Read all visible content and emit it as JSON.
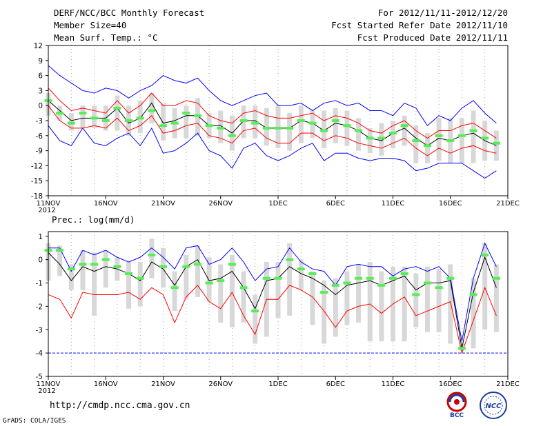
{
  "header": {
    "title": "DERF/NCC/BCC Monthly Forecast",
    "members": "Member Size=40",
    "variable": "Mean Surf. Temp.: °C",
    "period": "For 2012/11/11-2012/12/20",
    "refer": "Fcst Started Refer Date 2012/11/10",
    "produced": "Fcst Produced Date 2012/11/11"
  },
  "footer": {
    "url": "http://cmdp.ncc.cma.gov.cn",
    "credit": "GrADS: COLA/IGES",
    "logo_bcc": "BCC",
    "logo_ncc": "NCC"
  },
  "colors": {
    "max_min": "#0000ff",
    "spread": "#ff0000",
    "mean": "#000000",
    "median": "#55ee55",
    "box": "#d8d8d8",
    "grid": "#888888"
  },
  "chart_data": [
    {
      "type": "line",
      "title": "Mean Surf. Temp.: °C",
      "xlabel": "",
      "ylabel": "°C",
      "ylim": [
        -18,
        12
      ],
      "yticks": [
        12,
        9,
        6,
        3,
        0,
        -3,
        -6,
        -9,
        -12,
        -15,
        -18
      ],
      "xticks": [
        {
          "day": 1,
          "label": "11NOV",
          "sub": "2012"
        },
        {
          "day": 6,
          "label": "16NOV"
        },
        {
          "day": 11,
          "label": "21NOV"
        },
        {
          "day": 16,
          "label": "26NOV"
        },
        {
          "day": 21,
          "label": "1DEC"
        },
        {
          "day": 26,
          "label": "6DEC"
        },
        {
          "day": 31,
          "label": "11DEC"
        },
        {
          "day": 36,
          "label": "16DEC"
        },
        {
          "day": 41,
          "label": "21DEC"
        }
      ],
      "x": [
        1,
        2,
        3,
        4,
        5,
        6,
        7,
        8,
        9,
        10,
        11,
        12,
        13,
        14,
        15,
        16,
        17,
        18,
        19,
        20,
        21,
        22,
        23,
        24,
        25,
        26,
        27,
        28,
        29,
        30,
        31,
        32,
        33,
        34,
        35,
        36,
        37,
        38,
        39,
        40
      ],
      "series": [
        {
          "name": "max",
          "values": [
            8.0,
            6.0,
            4.5,
            3.0,
            2.5,
            3.5,
            3.0,
            1.5,
            3.0,
            4.0,
            6.0,
            5.0,
            4.5,
            5.5,
            3.0,
            1.0,
            0.0,
            1.0,
            2.0,
            2.5,
            0.0,
            0.0,
            0.5,
            -1.0,
            0.5,
            1.0,
            0.0,
            0.5,
            -1.0,
            -1.0,
            -2.0,
            0.5,
            -0.5,
            -4.0,
            -2.0,
            -3.0,
            -0.5,
            1.0,
            -1.5,
            -3.5
          ]
        },
        {
          "name": "upper",
          "values": [
            3.5,
            1.0,
            -1.0,
            -0.5,
            -1.0,
            -1.5,
            1.0,
            -1.5,
            0.0,
            2.5,
            0.0,
            0.0,
            1.0,
            0.5,
            -2.0,
            -3.0,
            -3.5,
            -1.5,
            -1.0,
            -2.0,
            -2.5,
            -2.5,
            -2.0,
            -1.5,
            -3.0,
            -2.0,
            -2.5,
            -3.5,
            -5.0,
            -5.5,
            -4.0,
            -3.0,
            -5.0,
            -6.5,
            -5.0,
            -5.0,
            -4.0,
            -3.5,
            -5.0,
            -6.5
          ]
        },
        {
          "name": "mean",
          "values": [
            1.0,
            -1.0,
            -3.0,
            -2.5,
            -2.5,
            -2.5,
            -0.5,
            -3.5,
            -2.5,
            0.5,
            -3.5,
            -3.0,
            -2.0,
            -2.0,
            -4.0,
            -4.0,
            -5.5,
            -3.0,
            -3.0,
            -4.5,
            -4.5,
            -4.5,
            -3.0,
            -3.5,
            -5.0,
            -3.5,
            -4.0,
            -5.0,
            -6.5,
            -7.0,
            -5.5,
            -4.5,
            -6.5,
            -8.0,
            -6.5,
            -7.0,
            -6.0,
            -5.5,
            -7.0,
            -8.0
          ]
        },
        {
          "name": "lower",
          "values": [
            0.0,
            -3.0,
            -4.5,
            -4.5,
            -4.0,
            -4.5,
            -2.5,
            -5.0,
            -4.0,
            -2.0,
            -5.5,
            -5.0,
            -4.0,
            -3.5,
            -6.0,
            -6.5,
            -7.5,
            -5.0,
            -4.5,
            -6.5,
            -7.5,
            -7.5,
            -5.5,
            -5.5,
            -7.0,
            -6.0,
            -6.5,
            -7.5,
            -8.0,
            -8.5,
            -7.5,
            -6.5,
            -8.5,
            -10.0,
            -8.5,
            -9.5,
            -8.5,
            -8.0,
            -9.0,
            -9.5
          ]
        },
        {
          "name": "min",
          "values": [
            -4.0,
            -7.0,
            -8.0,
            -4.5,
            -7.5,
            -8.0,
            -6.5,
            -5.5,
            -8.0,
            -4.5,
            -9.5,
            -9.0,
            -7.5,
            -5.5,
            -9.0,
            -10.0,
            -12.5,
            -8.5,
            -7.5,
            -10.0,
            -11.0,
            -10.0,
            -8.5,
            -7.5,
            -11.0,
            -9.5,
            -9.5,
            -10.5,
            -11.0,
            -10.5,
            -10.5,
            -11.0,
            -13.0,
            -12.5,
            -11.5,
            -11.5,
            -11.5,
            -13.0,
            -14.5,
            -13.0
          ]
        },
        {
          "name": "median",
          "values": [
            1.0,
            -1.5,
            -3.5,
            -1.5,
            -2.5,
            -3.0,
            -0.5,
            -3.0,
            -2.5,
            -1.0,
            -4.0,
            -3.5,
            -1.5,
            -2.0,
            -4.0,
            -4.5,
            -6.0,
            -3.0,
            -3.5,
            -4.5,
            -4.5,
            -4.5,
            -3.0,
            -3.5,
            -5.0,
            -3.0,
            -4.0,
            -5.0,
            -6.5,
            -6.5,
            -5.5,
            -4.0,
            -7.0,
            -8.0,
            -6.0,
            -7.0,
            -6.0,
            -5.0,
            -6.5,
            -7.5
          ]
        },
        {
          "name": "box_top",
          "values": [
            2.5,
            0.0,
            -1.5,
            0.0,
            0.0,
            0.0,
            2.0,
            0.0,
            1.0,
            2.5,
            0.5,
            -0.5,
            0.0,
            1.5,
            -1.5,
            -1.0,
            -2.0,
            0.0,
            0.0,
            -0.5,
            0.0,
            -1.5,
            0.0,
            -1.0,
            -1.0,
            -0.5,
            -1.0,
            -2.5,
            -4.5,
            -3.5,
            -3.0,
            -2.0,
            -4.0,
            -5.5,
            -2.5,
            -2.5,
            -2.5,
            -1.0,
            -3.0,
            -5.0
          ]
        },
        {
          "name": "box_bottom",
          "values": [
            -2.0,
            -3.0,
            -5.0,
            -4.5,
            -4.5,
            -5.0,
            -5.0,
            -6.0,
            -5.5,
            -3.5,
            -7.0,
            -6.5,
            -6.5,
            -6.0,
            -6.5,
            -7.5,
            -9.0,
            -6.5,
            -6.5,
            -8.0,
            -8.5,
            -9.0,
            -7.5,
            -6.5,
            -8.5,
            -7.5,
            -8.0,
            -9.0,
            -9.5,
            -10.0,
            -8.5,
            -8.0,
            -11.5,
            -11.5,
            -11.0,
            -11.5,
            -11.5,
            -11.5,
            -11.0,
            -11.0
          ]
        }
      ]
    },
    {
      "type": "line",
      "title": "Prec.: log(mm/d)",
      "xlabel": "",
      "ylabel": "log(mm/d)",
      "ylim": [
        -5,
        1.2
      ],
      "yticks": [
        1,
        0,
        -1,
        -2,
        -3,
        -4,
        -5
      ],
      "xticks": [
        {
          "day": 1,
          "label": "11NOV",
          "sub": "2012"
        },
        {
          "day": 6,
          "label": "16NOV"
        },
        {
          "day": 11,
          "label": "21NOV"
        },
        {
          "day": 16,
          "label": "26NOV"
        },
        {
          "day": 21,
          "label": "1DEC"
        },
        {
          "day": 26,
          "label": "6DEC"
        },
        {
          "day": 31,
          "label": "11DEC"
        },
        {
          "day": 36,
          "label": "16DEC"
        },
        {
          "day": 41,
          "label": "21DEC"
        }
      ],
      "x": [
        1,
        2,
        3,
        4,
        5,
        6,
        7,
        8,
        9,
        10,
        11,
        12,
        13,
        14,
        15,
        16,
        17,
        18,
        19,
        20,
        21,
        22,
        23,
        24,
        25,
        26,
        27,
        28,
        29,
        30,
        31,
        32,
        33,
        34,
        35,
        36,
        37,
        38,
        39,
        40
      ],
      "floor": -4,
      "series": [
        {
          "name": "max",
          "values": [
            0.5,
            0.5,
            -0.5,
            0.4,
            0.2,
            0.4,
            0.1,
            -0.1,
            0.1,
            0.5,
            0.1,
            -0.4,
            0.5,
            0.6,
            -0.2,
            0.0,
            0.5,
            -0.1,
            -0.9,
            -0.4,
            -0.3,
            0.5,
            -0.1,
            -0.4,
            -0.5,
            -1.1,
            -0.3,
            -0.2,
            -0.3,
            -0.3,
            -0.7,
            -0.4,
            -0.3,
            -0.5,
            -0.3,
            -0.8,
            -3.5,
            -0.8,
            0.7,
            -0.3
          ]
        },
        {
          "name": "mean",
          "values": [
            0.3,
            -0.2,
            -0.9,
            -0.3,
            -0.5,
            -0.3,
            -0.4,
            -0.6,
            -0.9,
            -0.1,
            -0.4,
            -1.1,
            -0.3,
            0.0,
            -0.9,
            -0.8,
            -0.5,
            -1.2,
            -2.1,
            -0.9,
            -0.8,
            -0.3,
            -0.6,
            -0.8,
            -1.1,
            -1.5,
            -1.1,
            -1.0,
            -0.9,
            -1.1,
            -0.9,
            -0.7,
            -1.3,
            -1.0,
            -1.0,
            -0.9,
            -3.8,
            -1.4,
            0.1,
            -1.2
          ]
        },
        {
          "name": "lower",
          "values": [
            -1.5,
            -1.7,
            -2.5,
            -1.4,
            -1.5,
            -1.5,
            -1.5,
            -1.4,
            -1.7,
            -1.2,
            -1.5,
            -2.7,
            -1.6,
            -1.1,
            -1.8,
            -2.1,
            -1.4,
            -2.4,
            -3.2,
            -1.7,
            -1.7,
            -1.1,
            -1.3,
            -1.6,
            -2.2,
            -2.9,
            -2.2,
            -2.0,
            -1.9,
            -2.3,
            -1.9,
            -1.6,
            -2.4,
            -2.2,
            -2.0,
            -1.8,
            -4.0,
            -2.6,
            -1.2,
            -2.4
          ]
        },
        {
          "name": "median",
          "values": [
            0.4,
            0.4,
            -0.4,
            -0.2,
            -0.2,
            0.0,
            -0.3,
            -0.6,
            -0.8,
            0.2,
            -0.3,
            -1.2,
            -0.3,
            -0.2,
            -1.0,
            -0.9,
            -0.2,
            -1.2,
            -2.2,
            -0.8,
            -0.8,
            0.0,
            -0.4,
            -0.6,
            -1.4,
            -1.1,
            -1.0,
            -0.8,
            -0.8,
            -1.1,
            -0.8,
            -0.6,
            -1.5,
            -1.0,
            -1.2,
            -0.8,
            -3.8,
            -1.5,
            0.2,
            -0.8
          ]
        },
        {
          "name": "box_top",
          "values": [
            0.7,
            0.6,
            -0.2,
            0.4,
            0.3,
            0.4,
            0.1,
            -0.1,
            -0.1,
            0.9,
            0.5,
            -0.5,
            0.2,
            0.6,
            0.1,
            -0.2,
            0.2,
            -0.5,
            -1.5,
            -0.1,
            -0.1,
            0.7,
            0.0,
            -0.5,
            -0.9,
            -0.8,
            -0.5,
            -0.2,
            -0.1,
            -0.5,
            -0.3,
            -0.3,
            -0.6,
            -0.3,
            -0.4,
            -0.2,
            -3.6,
            -0.8,
            0.7,
            -0.2
          ]
        },
        {
          "name": "box_bottom",
          "values": [
            -0.9,
            -0.7,
            -1.3,
            -1.3,
            -2.4,
            -1.2,
            -0.9,
            -2.1,
            -2.0,
            -0.8,
            -1.2,
            -2.2,
            -1.7,
            -1.6,
            -1.8,
            -2.7,
            -2.9,
            -2.7,
            -3.6,
            -3.3,
            -2.5,
            -2.4,
            -1.3,
            -2.8,
            -3.6,
            -3.3,
            -2.8,
            -2.7,
            -3.5,
            -3.5,
            -3.5,
            -3.5,
            -2.9,
            -3.1,
            -3.1,
            -3.6,
            -3.9,
            -3.8,
            -3.0,
            -3.1
          ]
        }
      ]
    }
  ]
}
